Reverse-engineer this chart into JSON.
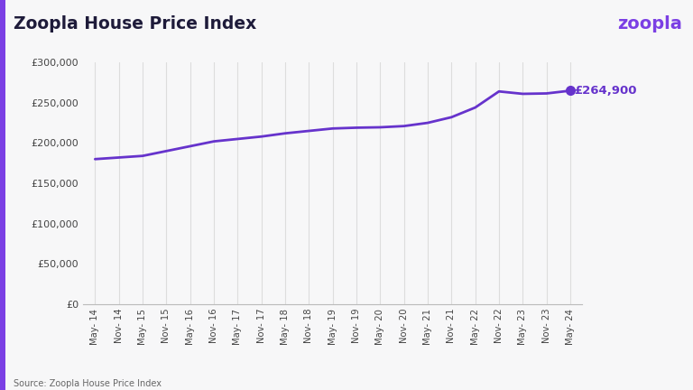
{
  "title": "Zoopla House Price Index",
  "logo_text": "zoopla",
  "source_text": "Source: Zoopla House Price Index",
  "annotation_text": "£264,900",
  "background_color": "#f7f7f8",
  "plot_bg_color": "#f7f7f8",
  "line_color": "#6633cc",
  "annotation_color": "#6633cc",
  "logo_color": "#7b3fe4",
  "title_color": "#1e1b3a",
  "grid_color": "#dddddd",
  "left_bar_color": "#7b3fe4",
  "tick_labels": [
    "May- 14",
    "Nov- 14",
    "May- 15",
    "Nov- 15",
    "May- 16",
    "Nov- 16",
    "May- 17",
    "Nov- 17",
    "May- 18",
    "Nov- 18",
    "May- 19",
    "Nov- 19",
    "May- 20",
    "Nov- 20",
    "May- 21",
    "Nov- 21",
    "May- 22",
    "Nov- 22",
    "May- 23",
    "Nov- 23",
    "May- 24"
  ],
  "values": [
    180000,
    182000,
    184000,
    190000,
    196000,
    202000,
    205000,
    208000,
    212000,
    215000,
    218000,
    219000,
    219500,
    221000,
    225000,
    232000,
    244000,
    264000,
    261000,
    261500,
    264900
  ],
  "ylim": [
    0,
    300000
  ],
  "yticks": [
    0,
    50000,
    100000,
    150000,
    200000,
    250000,
    300000
  ],
  "ytick_labels": [
    "£0",
    "£50,000",
    "£100,000",
    "£150,000",
    "£200,000",
    "£250,000",
    "£300,000"
  ]
}
